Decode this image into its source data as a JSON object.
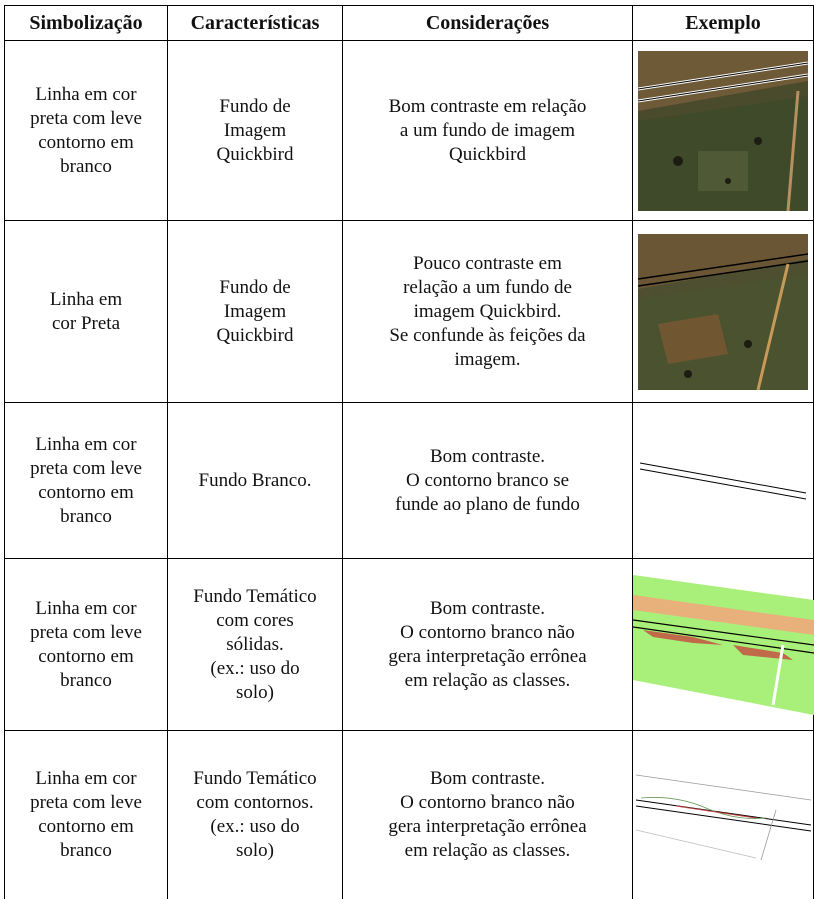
{
  "table": {
    "header": [
      "Simbolização",
      "Características",
      "Considerações",
      "Exemplo"
    ],
    "rows": [
      [
        [
          "Linha em cor",
          "preta com leve",
          "contorno em",
          "branco"
        ],
        [
          "Fundo de",
          "Imagem",
          "Quickbird"
        ],
        [
          "Bom contraste em relação",
          "a um fundo de imagem",
          "Quickbird"
        ]
      ],
      [
        [
          "Linha em",
          "cor Preta"
        ],
        [
          "Fundo de",
          "Imagem",
          "Quickbird"
        ],
        [
          "Pouco contraste em",
          "relação a um fundo de",
          "imagem Quickbird.",
          "Se confunde às feições da",
          "imagem."
        ]
      ],
      [
        [
          "Linha em cor",
          "preta com leve",
          "contorno em",
          "branco"
        ],
        [
          "Fundo Branco."
        ],
        [
          "Bom contraste.",
          "O contorno branco se",
          "funde ao plano de fundo"
        ]
      ],
      [
        [
          "Linha em cor",
          "preta com leve",
          "contorno em",
          "branco"
        ],
        [
          "Fundo Temático",
          "com cores",
          "sólidas.",
          "(ex.: uso do",
          "solo)"
        ],
        [
          "Bom contraste.",
          "O contorno branco não",
          "gera interpretação errônea",
          "em relação as classes."
        ]
      ],
      [
        [
          "Linha em cor",
          "preta com leve",
          "contorno em",
          "branco"
        ],
        [
          "Fundo Temático",
          "com contornos.",
          "(ex.: uso do",
          "solo)"
        ],
        [
          "Bom contraste.",
          "O contorno branco não",
          "gera interpretação errônea",
          "em relação as classes."
        ]
      ]
    ]
  }
}
